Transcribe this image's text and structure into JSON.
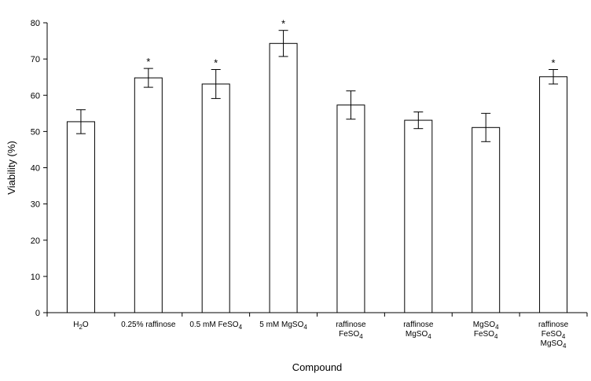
{
  "chart_data": {
    "type": "bar",
    "xlabel": "Compound",
    "ylabel": "Viability (%)",
    "ylim": [
      0,
      80
    ],
    "yticks": [
      0,
      10,
      20,
      30,
      40,
      50,
      60,
      70,
      80
    ],
    "grid": false,
    "categories": [
      [
        "H2O"
      ],
      [
        "0.25% raffinose"
      ],
      [
        "0.5 mM FeSO4"
      ],
      [
        "5 mM MgSO4"
      ],
      [
        "raffinose",
        "FeSO4"
      ],
      [
        "raffinose",
        "MgSO4"
      ],
      [
        "MgSO4",
        "FeSO4"
      ],
      [
        "raffinose",
        "FeSO4",
        "MgSO4"
      ]
    ],
    "values": [
      52.7,
      64.8,
      63.1,
      74.3,
      57.3,
      53.1,
      51.1,
      65.1
    ],
    "errors": [
      3.3,
      2.6,
      4.0,
      3.6,
      3.9,
      2.3,
      3.9,
      2.0
    ],
    "significance": [
      "",
      "*",
      "*",
      "*",
      "",
      "",
      "",
      "*"
    ],
    "bar_fill": "#ffffff",
    "bar_stroke": "#000000"
  }
}
